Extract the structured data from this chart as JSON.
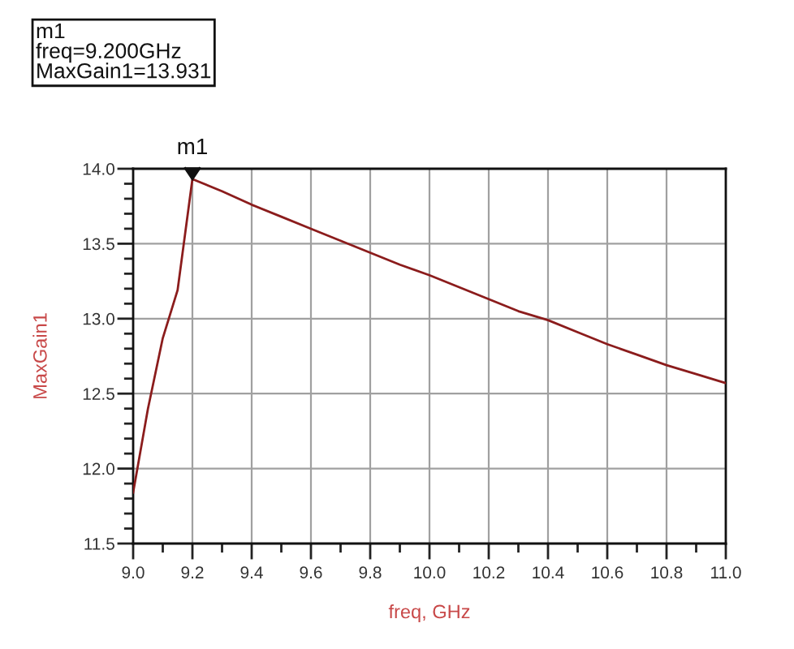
{
  "chart_data": {
    "type": "line",
    "xlabel": "freq, GHz",
    "ylabel": "MaxGain1",
    "x": [
      9.0,
      9.05,
      9.1,
      9.15,
      9.2,
      9.3,
      9.4,
      9.5,
      9.6,
      9.7,
      9.8,
      9.9,
      10.0,
      10.1,
      10.2,
      10.3,
      10.4,
      10.5,
      10.6,
      10.7,
      10.8,
      10.9,
      11.0
    ],
    "series": [
      {
        "color": "#8b1c1c",
        "values": [
          11.84,
          12.4,
          12.87,
          13.19,
          13.931,
          13.85,
          13.76,
          13.68,
          13.6,
          13.52,
          13.44,
          13.36,
          13.29,
          13.21,
          13.13,
          13.05,
          12.99,
          12.91,
          12.83,
          12.76,
          12.69,
          12.63,
          12.57
        ]
      }
    ],
    "xlim": [
      9.0,
      11.0
    ],
    "ylim": [
      11.5,
      14.0
    ],
    "xticks": [
      {
        "value": 9.0,
        "label": "9.0"
      },
      {
        "value": 9.2,
        "label": "9.2"
      },
      {
        "value": 9.4,
        "label": "9.4"
      },
      {
        "value": 9.6,
        "label": "9.6"
      },
      {
        "value": 9.8,
        "label": "9.8"
      },
      {
        "value": 10.0,
        "label": "10.0"
      },
      {
        "value": 10.2,
        "label": "10.2"
      },
      {
        "value": 10.4,
        "label": "10.4"
      },
      {
        "value": 10.6,
        "label": "10.6"
      },
      {
        "value": 10.8,
        "label": "10.8"
      },
      {
        "value": 11.0,
        "label": "11.0"
      }
    ],
    "yticks": [
      {
        "value": 11.5,
        "label": "11.5"
      },
      {
        "value": 12.0,
        "label": "12.0"
      },
      {
        "value": 12.5,
        "label": "12.5"
      },
      {
        "value": 13.0,
        "label": "13.0"
      },
      {
        "value": 13.5,
        "label": "13.5"
      },
      {
        "value": 14.0,
        "label": "14.0"
      }
    ],
    "grid": true,
    "line_style": "solid",
    "annotations": [
      "m1\nfreq=9.200GHz\nMaxGain1=13.931",
      {
        "text": "m1",
        "x": 9.2,
        "y": 13.931
      }
    ]
  }
}
